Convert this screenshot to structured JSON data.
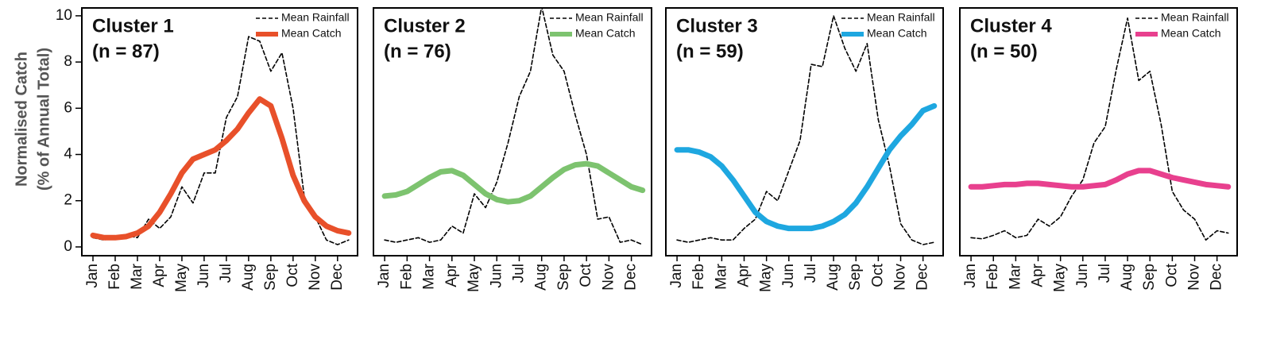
{
  "chart_data": [
    {
      "type": "line",
      "title": "Cluster 1",
      "subtitle": "(n = 87)",
      "ylabel": [
        "Normalised Catch",
        "(% of Annual Total)"
      ],
      "x": [
        1,
        1.5,
        2,
        2.5,
        3,
        3.5,
        4,
        4.5,
        5,
        5.5,
        6,
        6.5,
        7,
        7.5,
        8,
        8.5,
        9,
        9.5,
        10,
        10.5,
        11,
        11.5,
        12,
        12.5
      ],
      "xlim": [
        0.5,
        12.9
      ],
      "xticks": [
        {
          "value": 1,
          "label": "Jan"
        },
        {
          "value": 2,
          "label": "Feb"
        },
        {
          "value": 3,
          "label": "Mar"
        },
        {
          "value": 4,
          "label": "Apr"
        },
        {
          "value": 5,
          "label": "May"
        },
        {
          "value": 6,
          "label": "Jun"
        },
        {
          "value": 7,
          "label": "Jul"
        },
        {
          "value": 8,
          "label": "Aug"
        },
        {
          "value": 9,
          "label": "Sep"
        },
        {
          "value": 10,
          "label": "Oct"
        },
        {
          "value": 11,
          "label": "Nov"
        },
        {
          "value": 12,
          "label": "Dec"
        }
      ],
      "ylim": [
        -0.38,
        10.34
      ],
      "yticks": [
        0,
        2,
        4,
        6,
        8,
        10
      ],
      "series": [
        {
          "name": "Mean Rainfall",
          "color": "#000000",
          "dashed": true,
          "values": [
            0.4,
            0.3,
            0.4,
            0.5,
            0.4,
            1.2,
            0.8,
            1.3,
            2.6,
            1.9,
            3.2,
            3.2,
            5.6,
            6.5,
            9.1,
            8.9,
            7.6,
            8.4,
            6.0,
            2.2,
            1.3,
            0.3,
            0.1,
            0.3
          ]
        },
        {
          "name": "Mean Catch",
          "color": "#e8502a",
          "values": [
            0.5,
            0.4,
            0.4,
            0.45,
            0.6,
            0.9,
            1.5,
            2.3,
            3.2,
            3.8,
            4.0,
            4.2,
            4.6,
            5.1,
            5.8,
            6.4,
            6.1,
            4.7,
            3.1,
            2.0,
            1.3,
            0.9,
            0.7,
            0.6
          ]
        }
      ]
    },
    {
      "type": "line",
      "title": "Cluster 2",
      "subtitle": "(n = 76)",
      "x": [
        1,
        1.5,
        2,
        2.5,
        3,
        3.5,
        4,
        4.5,
        5,
        5.5,
        6,
        6.5,
        7,
        7.5,
        8,
        8.5,
        9,
        9.5,
        10,
        10.5,
        11,
        11.5,
        12,
        12.5
      ],
      "xlim": [
        0.5,
        12.9
      ],
      "xticks": [
        {
          "value": 1,
          "label": "Jan"
        },
        {
          "value": 2,
          "label": "Feb"
        },
        {
          "value": 3,
          "label": "Mar"
        },
        {
          "value": 4,
          "label": "Apr"
        },
        {
          "value": 5,
          "label": "May"
        },
        {
          "value": 6,
          "label": "Jun"
        },
        {
          "value": 7,
          "label": "Jul"
        },
        {
          "value": 8,
          "label": "Aug"
        },
        {
          "value": 9,
          "label": "Sep"
        },
        {
          "value": 10,
          "label": "Oct"
        },
        {
          "value": 11,
          "label": "Nov"
        },
        {
          "value": 12,
          "label": "Dec"
        }
      ],
      "ylim": [
        -0.38,
        10.34
      ],
      "series": [
        {
          "name": "Mean Rainfall",
          "color": "#000000",
          "dashed": true,
          "values": [
            0.3,
            0.2,
            0.3,
            0.4,
            0.2,
            0.3,
            0.9,
            0.6,
            2.3,
            1.7,
            2.8,
            4.5,
            6.5,
            7.6,
            10.4,
            8.3,
            7.6,
            5.7,
            4.0,
            1.2,
            1.3,
            0.2,
            0.3,
            0.1
          ]
        },
        {
          "name": "Mean Catch",
          "color": "#7dc36f",
          "values": [
            2.2,
            2.25,
            2.4,
            2.7,
            3.0,
            3.25,
            3.3,
            3.1,
            2.7,
            2.3,
            2.05,
            1.95,
            2.0,
            2.2,
            2.6,
            3.0,
            3.35,
            3.55,
            3.6,
            3.5,
            3.2,
            2.9,
            2.6,
            2.45
          ]
        }
      ]
    },
    {
      "type": "line",
      "title": "Cluster 3",
      "subtitle": "(n = 59)",
      "x": [
        1,
        1.5,
        2,
        2.5,
        3,
        3.5,
        4,
        4.5,
        5,
        5.5,
        6,
        6.5,
        7,
        7.5,
        8,
        8.5,
        9,
        9.5,
        10,
        10.5,
        11,
        11.5,
        12,
        12.5
      ],
      "xlim": [
        0.5,
        12.9
      ],
      "xticks": [
        {
          "value": 1,
          "label": "Jan"
        },
        {
          "value": 2,
          "label": "Feb"
        },
        {
          "value": 3,
          "label": "Mar"
        },
        {
          "value": 4,
          "label": "Apr"
        },
        {
          "value": 5,
          "label": "May"
        },
        {
          "value": 6,
          "label": "Jun"
        },
        {
          "value": 7,
          "label": "Jul"
        },
        {
          "value": 8,
          "label": "Aug"
        },
        {
          "value": 9,
          "label": "Sep"
        },
        {
          "value": 10,
          "label": "Oct"
        },
        {
          "value": 11,
          "label": "Nov"
        },
        {
          "value": 12,
          "label": "Dec"
        }
      ],
      "ylim": [
        -0.38,
        10.34
      ],
      "series": [
        {
          "name": "Mean Rainfall",
          "color": "#000000",
          "dashed": true,
          "values": [
            0.3,
            0.2,
            0.3,
            0.4,
            0.3,
            0.3,
            0.8,
            1.2,
            2.4,
            2.0,
            3.3,
            4.6,
            7.9,
            7.8,
            10.0,
            8.6,
            7.6,
            8.8,
            5.5,
            3.5,
            1.0,
            0.3,
            0.1,
            0.2
          ]
        },
        {
          "name": "Mean Catch",
          "color": "#1ea7e0",
          "values": [
            4.2,
            4.2,
            4.1,
            3.9,
            3.5,
            2.9,
            2.2,
            1.5,
            1.1,
            0.9,
            0.8,
            0.8,
            0.8,
            0.9,
            1.1,
            1.4,
            1.9,
            2.6,
            3.4,
            4.2,
            4.8,
            5.3,
            5.9,
            6.1
          ]
        }
      ]
    },
    {
      "type": "line",
      "title": "Cluster 4",
      "subtitle": "(n = 50)",
      "x": [
        1,
        1.5,
        2,
        2.5,
        3,
        3.5,
        4,
        4.5,
        5,
        5.5,
        6,
        6.5,
        7,
        7.5,
        8,
        8.5,
        9,
        9.5,
        10,
        10.5,
        11,
        11.5,
        12,
        12.5
      ],
      "xlim": [
        0.5,
        12.9
      ],
      "xticks": [
        {
          "value": 1,
          "label": "Jan"
        },
        {
          "value": 2,
          "label": "Feb"
        },
        {
          "value": 3,
          "label": "Mar"
        },
        {
          "value": 4,
          "label": "Apr"
        },
        {
          "value": 5,
          "label": "May"
        },
        {
          "value": 6,
          "label": "Jun"
        },
        {
          "value": 7,
          "label": "Jul"
        },
        {
          "value": 8,
          "label": "Aug"
        },
        {
          "value": 9,
          "label": "Sep"
        },
        {
          "value": 10,
          "label": "Oct"
        },
        {
          "value": 11,
          "label": "Nov"
        },
        {
          "value": 12,
          "label": "Dec"
        }
      ],
      "ylim": [
        -0.38,
        10.34
      ],
      "series": [
        {
          "name": "Mean Rainfall",
          "color": "#000000",
          "dashed": true,
          "values": [
            0.4,
            0.35,
            0.5,
            0.7,
            0.4,
            0.5,
            1.2,
            0.9,
            1.3,
            2.2,
            2.9,
            4.5,
            5.2,
            7.7,
            9.9,
            7.2,
            7.6,
            5.3,
            2.4,
            1.6,
            1.2,
            0.3,
            0.7,
            0.6
          ]
        },
        {
          "name": "Mean Catch",
          "color": "#e8408e",
          "values": [
            2.6,
            2.6,
            2.65,
            2.7,
            2.7,
            2.75,
            2.75,
            2.7,
            2.65,
            2.6,
            2.6,
            2.65,
            2.7,
            2.9,
            3.15,
            3.3,
            3.3,
            3.15,
            3.0,
            2.9,
            2.8,
            2.7,
            2.65,
            2.6
          ]
        }
      ]
    }
  ]
}
